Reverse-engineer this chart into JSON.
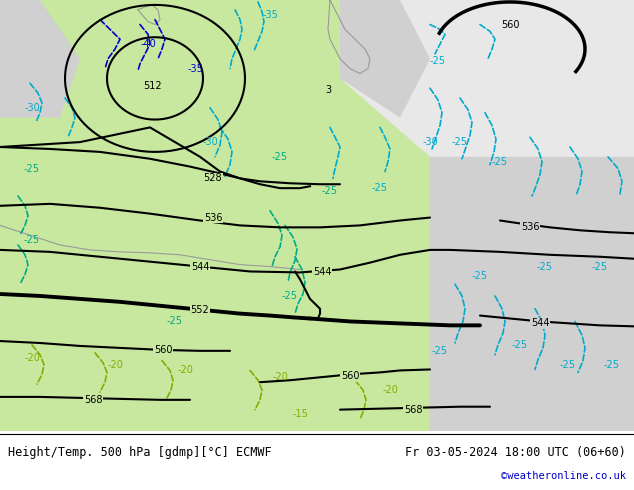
{
  "title_left": "Height/Temp. 500 hPa [gdmp][°C] ECMWF",
  "title_right": "Fr 03-05-2024 18:00 UTC (06+60)",
  "copyright": "©weatheronline.co.uk",
  "bg_color_land": "#c8e8a0",
  "bg_color_sea": "#d8d8d8",
  "bg_color_white": "#ffffff",
  "footer_bg": "#f0f0f0",
  "text_color_title": "#000000",
  "text_color_copyright": "#0000cc",
  "fig_width": 6.34,
  "fig_height": 4.9,
  "dpi": 100
}
